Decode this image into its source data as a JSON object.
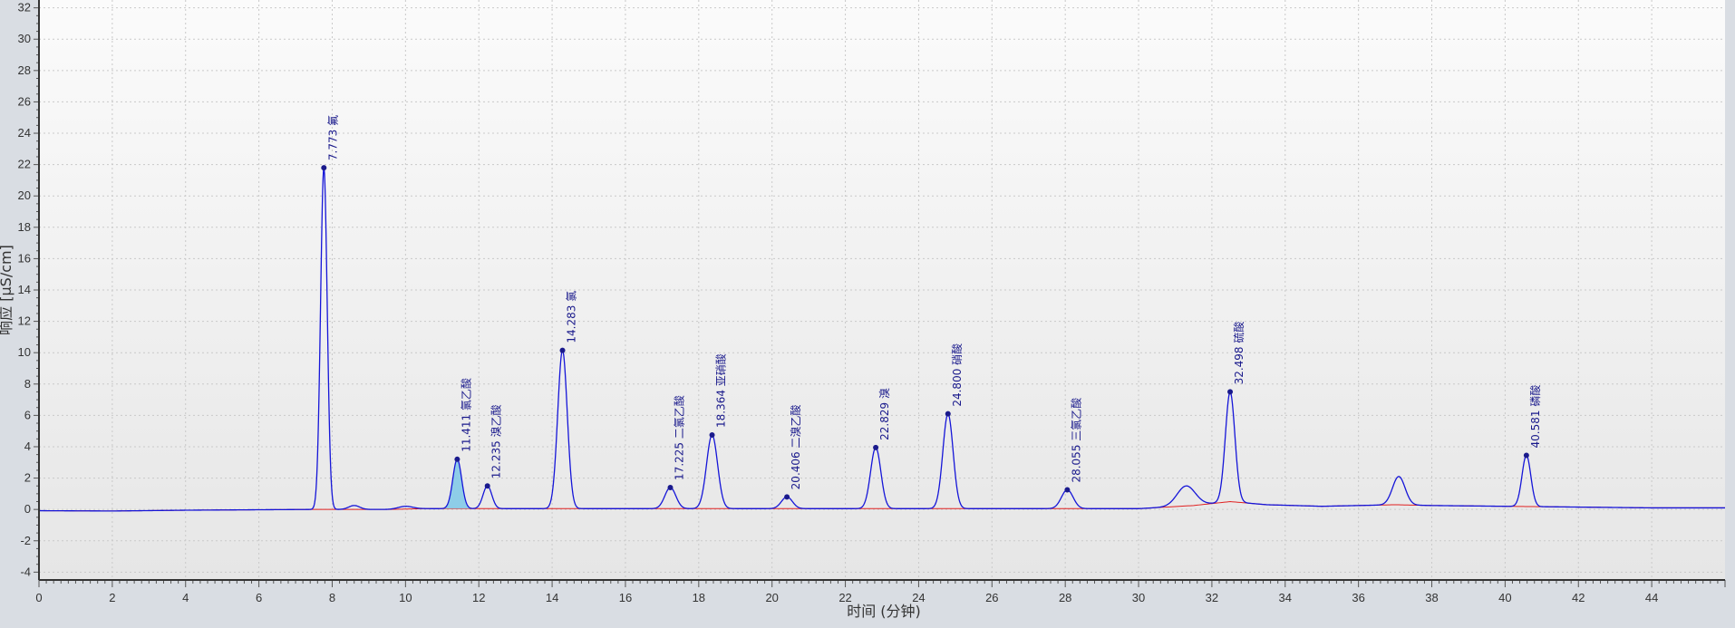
{
  "chart_data": {
    "type": "line",
    "title": "",
    "xlabel": "时间 (分钟)",
    "ylabel": "响应 [µS/cm]",
    "xlim": [
      0,
      46
    ],
    "ylim": [
      -4.5,
      32.5
    ],
    "x_ticks": [
      0,
      2,
      4,
      6,
      8,
      10,
      12,
      14,
      16,
      18,
      20,
      22,
      24,
      26,
      28,
      30,
      32,
      34,
      36,
      38,
      40,
      42,
      44
    ],
    "y_ticks": [
      -4,
      -2,
      0,
      2,
      4,
      6,
      8,
      10,
      12,
      14,
      16,
      18,
      20,
      22,
      24,
      26,
      28,
      30,
      32
    ],
    "grid": true,
    "baseline": [
      [
        0,
        -0.08
      ],
      [
        2,
        -0.1
      ],
      [
        4,
        -0.05
      ],
      [
        6,
        -0.02
      ],
      [
        7.5,
        0.0
      ],
      [
        8.5,
        0.0
      ],
      [
        9.5,
        0.0
      ],
      [
        10.5,
        0.05
      ],
      [
        12,
        0.05
      ],
      [
        14,
        0.05
      ],
      [
        16,
        0.05
      ],
      [
        18,
        0.05
      ],
      [
        20,
        0.05
      ],
      [
        22,
        0.05
      ],
      [
        24,
        0.05
      ],
      [
        26,
        0.05
      ],
      [
        28,
        0.05
      ],
      [
        30,
        0.05
      ],
      [
        31.5,
        0.25
      ],
      [
        32.5,
        0.5
      ],
      [
        33.5,
        0.3
      ],
      [
        35,
        0.2
      ],
      [
        37,
        0.3
      ],
      [
        38,
        0.25
      ],
      [
        40,
        0.2
      ],
      [
        42,
        0.15
      ],
      [
        44,
        0.1
      ],
      [
        46,
        0.1
      ]
    ],
    "peaks": [
      {
        "x": 7.773,
        "y": 21.8,
        "w": 0.09,
        "label": "7.773 氟"
      },
      {
        "x": 8.6,
        "y": 0.25,
        "w": 0.15
      },
      {
        "x": 10.0,
        "y": 0.2,
        "w": 0.2
      },
      {
        "x": 11.411,
        "y": 3.2,
        "w": 0.12,
        "label": "11.411 氯乙酸",
        "filled": true
      },
      {
        "x": 12.235,
        "y": 1.5,
        "w": 0.12,
        "label": "12.235 溴乙酸"
      },
      {
        "x": 14.283,
        "y": 10.15,
        "w": 0.13,
        "label": "14.283 氯"
      },
      {
        "x": 17.225,
        "y": 1.4,
        "w": 0.15,
        "label": "17.225 二氯乙酸"
      },
      {
        "x": 18.364,
        "y": 4.75,
        "w": 0.15,
        "label": "18.364 亚硝酸"
      },
      {
        "x": 20.406,
        "y": 0.8,
        "w": 0.15,
        "label": "20.406 二溴乙酸"
      },
      {
        "x": 22.829,
        "y": 3.95,
        "w": 0.14,
        "label": "22.829 溴"
      },
      {
        "x": 24.8,
        "y": 6.1,
        "w": 0.14,
        "label": "24.800 硝酸"
      },
      {
        "x": 28.055,
        "y": 1.25,
        "w": 0.16,
        "label": "28.055 三氯乙酸"
      },
      {
        "x": 31.3,
        "y": 1.5,
        "w": 0.25
      },
      {
        "x": 32.498,
        "y": 7.5,
        "w": 0.13,
        "label": "32.498 硫酸"
      },
      {
        "x": 37.1,
        "y": 2.1,
        "w": 0.17
      },
      {
        "x": 40.581,
        "y": 3.45,
        "w": 0.12,
        "label": "40.581 磷酸"
      }
    ],
    "colors": {
      "signal": "#1515d8",
      "baseline": "#e02020",
      "marker": "#1a1a8c",
      "label": "#1a1a8c",
      "fill": "#7ec8e8",
      "grid": "#c9c9c9",
      "plot_bg": "#f7f7f7"
    }
  }
}
